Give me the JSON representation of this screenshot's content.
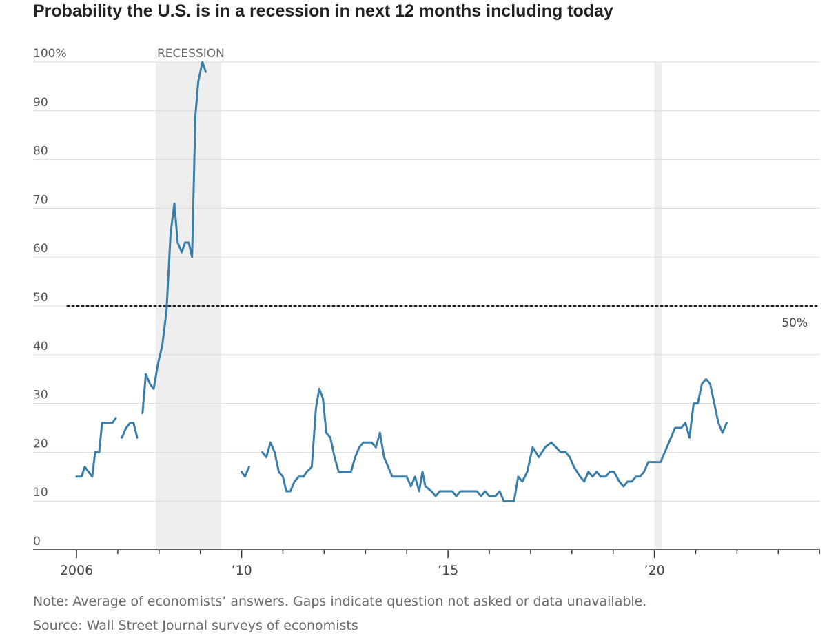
{
  "chart_data": {
    "type": "line",
    "title": "Probability the U.S. is in a recession in next 12 months including today",
    "y_unit": "percent",
    "ylim": [
      0,
      100
    ],
    "xlim": [
      2006,
      2024.2
    ],
    "y_ticks": [
      {
        "value": 0,
        "label": "0"
      },
      {
        "value": 10,
        "label": "10"
      },
      {
        "value": 20,
        "label": "20"
      },
      {
        "value": 30,
        "label": "30"
      },
      {
        "value": 40,
        "label": "40"
      },
      {
        "value": 50,
        "label": "50"
      },
      {
        "value": 60,
        "label": "60"
      },
      {
        "value": 70,
        "label": "70"
      },
      {
        "value": 80,
        "label": "80"
      },
      {
        "value": 90,
        "label": "90"
      },
      {
        "value": 100,
        "label": "100%"
      }
    ],
    "x_ticks": [
      {
        "value": 2006,
        "label": "2006"
      },
      {
        "value": 2010,
        "label": "’10"
      },
      {
        "value": 2015,
        "label": "’15"
      },
      {
        "value": 2020,
        "label": "’20"
      }
    ],
    "x_minor_ticks": [
      2007,
      2008,
      2009,
      2011,
      2012,
      2013,
      2014,
      2016,
      2017,
      2018,
      2019,
      2021,
      2022,
      2023,
      2024
    ],
    "grid": "horizontal",
    "recessions": [
      {
        "start": 2007.92,
        "end": 2009.5,
        "label": "RECESSION"
      },
      {
        "start": 2020.0,
        "end": 2020.17,
        "label": ""
      }
    ],
    "reference_line": {
      "value": 50,
      "label": "50%",
      "style": "dotted"
    },
    "line_color": "#3a7eaa",
    "series": [
      {
        "segments": [
          [
            [
              2006.0,
              15
            ],
            [
              2006.12,
              15
            ],
            [
              2006.2,
              17
            ],
            [
              2006.38,
              15
            ],
            [
              2006.45,
              20
            ],
            [
              2006.55,
              20
            ],
            [
              2006.62,
              26
            ],
            [
              2006.87,
              26
            ],
            [
              2006.95,
              27
            ]
          ],
          [
            [
              2007.1,
              23
            ],
            [
              2007.2,
              25
            ],
            [
              2007.3,
              26
            ],
            [
              2007.38,
              26
            ],
            [
              2007.47,
              23
            ]
          ],
          [
            [
              2007.6,
              28
            ],
            [
              2007.68,
              36
            ],
            [
              2007.78,
              34
            ],
            [
              2007.87,
              33
            ],
            [
              2007.97,
              38
            ],
            [
              2008.08,
              42
            ],
            [
              2008.18,
              49
            ],
            [
              2008.28,
              65
            ],
            [
              2008.37,
              71
            ],
            [
              2008.45,
              63
            ],
            [
              2008.55,
              61
            ],
            [
              2008.63,
              63
            ],
            [
              2008.72,
              63
            ],
            [
              2008.8,
              60
            ],
            [
              2008.88,
              89
            ],
            [
              2008.95,
              96
            ],
            [
              2009.05,
              100
            ],
            [
              2009.13,
              98
            ]
          ]
        ]
      },
      {
        "segments": [
          [
            [
              2010.0,
              16
            ],
            [
              2010.08,
              15
            ],
            [
              2010.18,
              17
            ]
          ],
          [
            [
              2010.5,
              20
            ],
            [
              2010.6,
              19
            ],
            [
              2010.7,
              22
            ],
            [
              2010.8,
              20
            ],
            [
              2010.9,
              16
            ],
            [
              2011.0,
              15
            ],
            [
              2011.08,
              12
            ],
            [
              2011.18,
              12
            ],
            [
              2011.28,
              14
            ],
            [
              2011.38,
              15
            ],
            [
              2011.5,
              15
            ],
            [
              2011.58,
              16
            ],
            [
              2011.7,
              17
            ],
            [
              2011.8,
              29
            ],
            [
              2011.88,
              33
            ],
            [
              2011.97,
              31
            ],
            [
              2012.05,
              24
            ],
            [
              2012.15,
              23
            ],
            [
              2012.25,
              19
            ],
            [
              2012.35,
              16
            ],
            [
              2012.65,
              16
            ],
            [
              2012.75,
              19
            ],
            [
              2012.85,
              21
            ],
            [
              2012.95,
              22
            ],
            [
              2013.15,
              22
            ],
            [
              2013.25,
              21
            ],
            [
              2013.35,
              24
            ],
            [
              2013.45,
              19
            ],
            [
              2013.55,
              17
            ],
            [
              2013.65,
              15
            ],
            [
              2014.0,
              15
            ],
            [
              2014.1,
              13
            ],
            [
              2014.2,
              15
            ],
            [
              2014.3,
              12
            ],
            [
              2014.38,
              16
            ],
            [
              2014.45,
              13
            ],
            [
              2014.6,
              12
            ],
            [
              2014.7,
              11
            ],
            [
              2014.8,
              12
            ],
            [
              2015.1,
              12
            ],
            [
              2015.2,
              11
            ],
            [
              2015.3,
              12
            ],
            [
              2015.7,
              12
            ],
            [
              2015.8,
              11
            ],
            [
              2015.9,
              12
            ],
            [
              2016.0,
              11
            ],
            [
              2016.15,
              11
            ],
            [
              2016.25,
              12
            ],
            [
              2016.35,
              10
            ],
            [
              2016.6,
              10
            ],
            [
              2016.7,
              15
            ],
            [
              2016.8,
              14
            ],
            [
              2016.92,
              16
            ],
            [
              2017.05,
              21
            ],
            [
              2017.2,
              19
            ],
            [
              2017.35,
              21
            ],
            [
              2017.5,
              22
            ],
            [
              2017.62,
              21
            ],
            [
              2017.73,
              20
            ],
            [
              2017.85,
              20
            ],
            [
              2017.95,
              19
            ],
            [
              2018.05,
              17
            ],
            [
              2018.2,
              15
            ],
            [
              2018.3,
              14
            ],
            [
              2018.4,
              16
            ],
            [
              2018.5,
              15
            ],
            [
              2018.6,
              16
            ],
            [
              2018.7,
              15
            ],
            [
              2018.82,
              15
            ],
            [
              2018.92,
              16
            ],
            [
              2019.02,
              16
            ],
            [
              2019.15,
              14
            ],
            [
              2019.25,
              13
            ],
            [
              2019.35,
              14
            ],
            [
              2019.45,
              14
            ],
            [
              2019.55,
              15
            ],
            [
              2019.65,
              15
            ],
            [
              2019.75,
              16
            ],
            [
              2019.85,
              18
            ],
            [
              2020.05,
              18
            ],
            [
              2020.15,
              18
            ],
            [
              2020.3,
              21
            ],
            [
              2020.4,
              23
            ],
            [
              2020.5,
              25
            ],
            [
              2020.65,
              25
            ],
            [
              2020.75,
              26
            ],
            [
              2020.85,
              23
            ],
            [
              2020.95,
              30
            ],
            [
              2021.05,
              30
            ],
            [
              2021.15,
              34
            ],
            [
              2021.25,
              35
            ],
            [
              2021.35,
              34
            ],
            [
              2021.45,
              30
            ],
            [
              2021.55,
              26
            ],
            [
              2021.65,
              24
            ],
            [
              2021.75,
              26
            ]
          ]
        ]
      }
    ]
  },
  "footer": {
    "note": "Note: Average of economists’ answers. Gaps indicate question not asked or data unavailable.",
    "source": "Source: Wall Street Journal surveys of economists"
  }
}
